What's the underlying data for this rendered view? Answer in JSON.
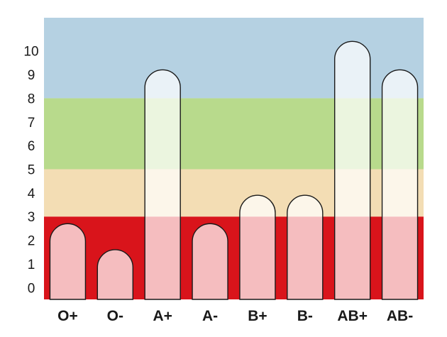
{
  "chart_data": {
    "type": "bar",
    "title": "",
    "xlabel": "",
    "ylabel": "",
    "categories": [
      "O+",
      "O-",
      "A+",
      "A-",
      "B+",
      "B-",
      "AB+",
      "AB-"
    ],
    "values": [
      2.7,
      1.6,
      9.2,
      2.7,
      3.9,
      3.9,
      10.4,
      9.2
    ],
    "ylim": [
      -0.5,
      11.4
    ],
    "yticks": [
      "0",
      "1",
      "2",
      "3",
      "4",
      "5",
      "6",
      "7",
      "8",
      "9",
      "10"
    ],
    "grid": false,
    "legend": "none",
    "bands": [
      {
        "from": -0.5,
        "to": 3,
        "color": "#d9141b"
      },
      {
        "from": 3,
        "to": 5,
        "color": "#f3ddb4"
      },
      {
        "from": 5,
        "to": 8,
        "color": "#b8da8c"
      },
      {
        "from": 8,
        "to": 11.4,
        "color": "#b5d1e2"
      }
    ],
    "bar_style": {
      "fill": "#ffffff",
      "opacity": 0.72,
      "stroke": "#1a1a1a",
      "shape": "rounded-top"
    }
  }
}
